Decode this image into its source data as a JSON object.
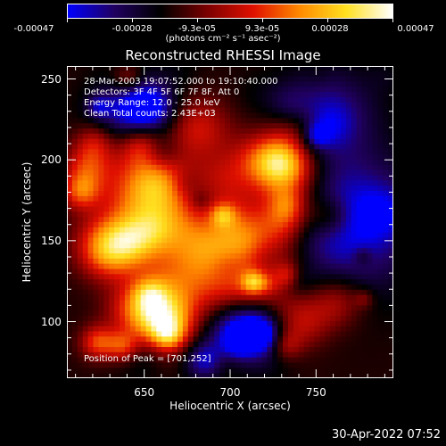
{
  "colorbar": {
    "tick_labels": [
      "-0.00047",
      "-0.00028",
      "-9.3e-05",
      "9.3e-05",
      "0.00028",
      "0.00047"
    ],
    "units": "(photons cm⁻² s⁻¹ asec⁻²)",
    "colormap": [
      "#0000ff",
      "#200060",
      "#000000",
      "#7a0000",
      "#e01000",
      "#ff8a00",
      "#ffe020",
      "#ffffff"
    ]
  },
  "chart_data": {
    "type": "heatmap",
    "title": "Reconstructed RHESSI Image",
    "xlabel": "Heliocentric X (arcsec)",
    "ylabel": "Heliocentric Y (arcsec)",
    "xlim": [
      605,
      795
    ],
    "ylim": [
      65,
      258
    ],
    "xticks": [
      650,
      700,
      750
    ],
    "yticks": [
      100,
      150,
      200,
      250
    ],
    "value_range": [
      -0.00047,
      0.00047
    ],
    "peak_position": [
      701,
      252
    ],
    "annotations": [
      "28-Mar-2003 19:07:52.000 to 19:10:40.000",
      "Detectors: 3F 4F 5F 6F 7F 8F, Att 0",
      "Energy Range: 12.0 - 25.0 keV",
      "Clean     Total counts: 2.43E+03",
      "Position of Peak = [701,252]"
    ]
  },
  "footer": {
    "datestamp": "30-Apr-2022 07:52"
  }
}
